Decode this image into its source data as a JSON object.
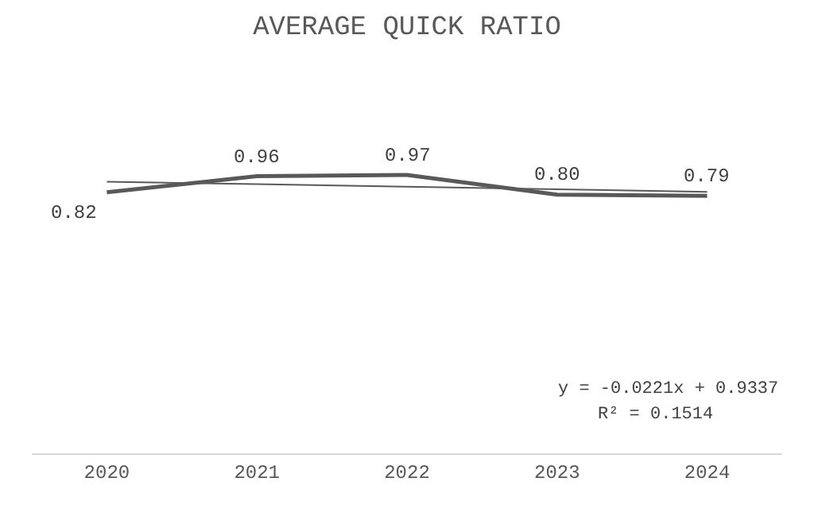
{
  "chart_data": {
    "type": "line",
    "title": "AVERAGE QUICK RATIO",
    "categories": [
      "2020",
      "2021",
      "2022",
      "2023",
      "2024"
    ],
    "series": [
      {
        "color": "#595959",
        "values": [
          0.82,
          0.96,
          0.97,
          0.8,
          0.79
        ],
        "value_labels": [
          "0.82",
          "0.96",
          "0.97",
          "0.80",
          "0.79"
        ]
      },
      {
        "type": "line",
        "color": "#595959",
        "values": [
          0.912,
          0.89,
          0.868,
          0.846,
          0.824
        ]
      }
    ],
    "tick_labels": "x",
    "annotations": [
      "y = -0.0221x + 0.9337",
      "R² = 0.1514"
    ]
  }
}
